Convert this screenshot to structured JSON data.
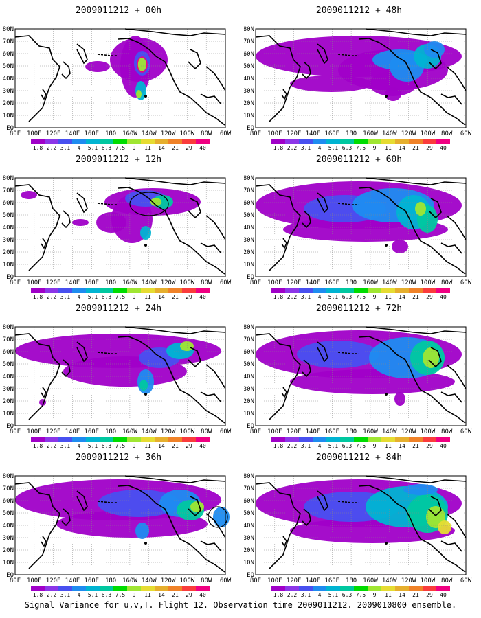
{
  "caption": "Signal Variance for u,v,T. Flight 12. Observation time 2009011212. 2009010800 ensemble.",
  "lat_labels": [
    "80N",
    "70N",
    "60N",
    "50N",
    "40N",
    "30N",
    "20N",
    "10N",
    "EQ"
  ],
  "lon_labels": [
    "80E",
    "100E",
    "120E",
    "140E",
    "160E",
    "180",
    "160W",
    "140W",
    "120W",
    "100W",
    "80W",
    "60W"
  ],
  "colorbar": {
    "labels": [
      "1.8",
      "2.2",
      "3.1",
      "4",
      "5.1",
      "6.3",
      "7.5",
      "9",
      "11",
      "14",
      "21",
      "29",
      "40"
    ],
    "colors": [
      "#a000c8",
      "#8c36e8",
      "#4850f0",
      "#1e8cf0",
      "#00b4d2",
      "#00c8a0",
      "#00dc00",
      "#a0e632",
      "#e6dc32",
      "#e6af2d",
      "#f08228",
      "#fa3c3c",
      "#f00082"
    ]
  },
  "panels": [
    {
      "title": "2009011212 + 00h"
    },
    {
      "title": "2009011212 + 48h"
    },
    {
      "title": "2009011212 + 12h"
    },
    {
      "title": "2009011212 + 60h"
    },
    {
      "title": "2009011212 + 24h"
    },
    {
      "title": "2009011212 + 72h"
    },
    {
      "title": "2009011212 + 36h"
    },
    {
      "title": "2009011212 + 84h"
    }
  ]
}
